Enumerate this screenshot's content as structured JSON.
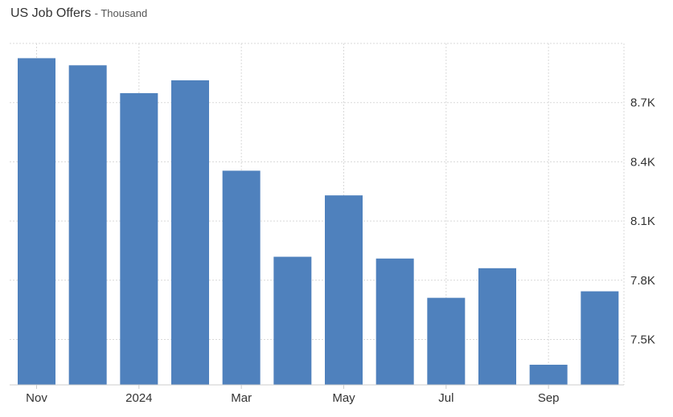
{
  "title": "US Job Offers",
  "subtitle": "- Thousand",
  "chart_data": {
    "type": "bar",
    "title": "US Job Offers",
    "subtitle": "- Thousand",
    "categories": [
      "Nov 2023",
      "Dec 2023",
      "Jan 2024",
      "Feb 2024",
      "Mar 2024",
      "Apr 2024",
      "May 2024",
      "Jun 2024",
      "Jul 2024",
      "Aug 2024",
      "Sep 2024",
      "Oct 2024"
    ],
    "values": [
      8925,
      8889,
      8748,
      8813,
      8355,
      7919,
      8230,
      7910,
      7711,
      7861,
      7372,
      7744
    ],
    "ylim": [
      7270,
      9000
    ],
    "y_ticks": [
      7500,
      7800,
      8100,
      8400,
      8700
    ],
    "y_tick_labels": [
      "7.5K",
      "7.8K",
      "8.1K",
      "8.4K",
      "8.7K"
    ],
    "x_tick_labels": [
      {
        "index": 0,
        "label": "Nov"
      },
      {
        "index": 2,
        "label": "2024"
      },
      {
        "index": 4,
        "label": "Mar"
      },
      {
        "index": 6,
        "label": "May"
      },
      {
        "index": 8,
        "label": "Jul"
      },
      {
        "index": 10,
        "label": "Sep"
      }
    ],
    "bar_color": "#4f81bd",
    "grid": true,
    "y_axis_position": "right"
  }
}
